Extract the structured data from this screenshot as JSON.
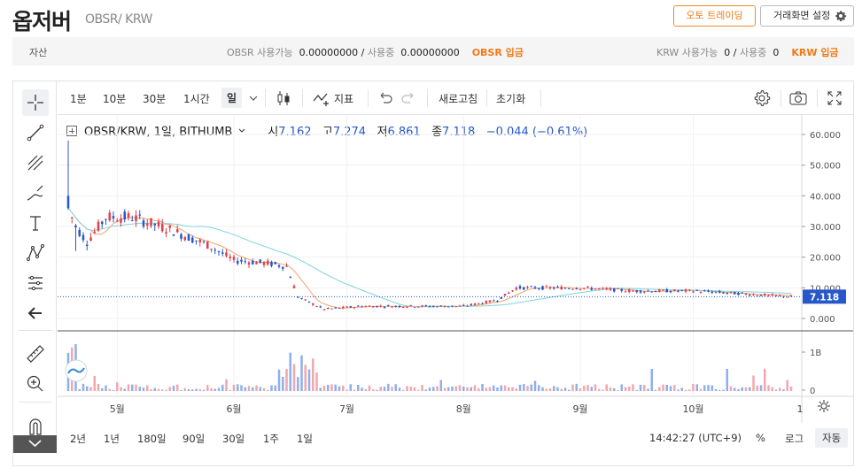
{
  "header": {
    "coin_name": "옵저버",
    "pair": "OBSR/ KRW",
    "auto_trading_label": "오토 트레이딩",
    "settings_label": "거래화면 설정"
  },
  "asset_bar": {
    "label": "자산",
    "obsr": {
      "available_label": "OBSR 사용가능",
      "available_value": "0.00000000",
      "sep": "/",
      "in_use_label": "사용중",
      "in_use_value": "0.00000000",
      "deposit_label": "OBSR 입금"
    },
    "krw": {
      "available_label": "KRW 사용가능",
      "available_value": "0",
      "sep": "/",
      "in_use_label": "사용중",
      "in_use_value": "0",
      "deposit_label": "KRW 입금"
    }
  },
  "toolbar": {
    "intervals": [
      "1분",
      "10분",
      "30분",
      "1시간",
      "일"
    ],
    "selected_interval": "일",
    "indicator_label": "지표",
    "refresh_label": "새로고침",
    "reset_label": "초기화"
  },
  "left_tools": [
    "crosshair-icon",
    "trend-line-icon",
    "fib-icon",
    "brush-icon",
    "text-icon",
    "pattern-icon",
    "measure-icon",
    "back-arrow-icon",
    "ruler-icon",
    "zoom-in-icon",
    "magnet-icon"
  ],
  "legend": {
    "title": "OBSR/KRW, 1일, BITHUMB",
    "open_label": "시",
    "open": "7.162",
    "high_label": "고",
    "high": "7.274",
    "low_label": "저",
    "low": "6.861",
    "close_label": "종",
    "close": "7.118",
    "change": "−0.044 (−0.61%)"
  },
  "price_axis": {
    "ticks": [
      "60.000",
      "50.000",
      "40.000",
      "30.000",
      "20.000",
      "10.000",
      "0.000"
    ],
    "last_price": "7.118"
  },
  "volume_axis": {
    "ticks": [
      "1B",
      "0"
    ]
  },
  "time_axis": {
    "ticks": [
      "5월",
      "6월",
      "7월",
      "8월",
      "9월",
      "10월",
      "1"
    ]
  },
  "bottom_bar": {
    "ranges": [
      "2년",
      "1년",
      "180일",
      "90일",
      "30일",
      "1주",
      "1일"
    ],
    "time": "14:42:27 (UTC+9)",
    "percent_label": "%",
    "log_label": "로그",
    "auto_label": "자동"
  },
  "chart_data": {
    "type": "candlestick",
    "title": "OBSR/KRW, 1일, BITHUMB",
    "x_range": [
      "2021-04-18",
      "2021-10-27"
    ],
    "ylim": [
      -5,
      65
    ],
    "colors": {
      "up": "#e0414d",
      "down": "#2758c9",
      "ma_short": "#f5a26a",
      "ma_long": "#7fd3df",
      "volume_up": "#f2a7ae",
      "volume_down": "#8fb0ea"
    },
    "closes_approx": [
      {
        "date": "2021-04-18",
        "close": 36
      },
      {
        "date": "2021-04-20",
        "close": 30
      },
      {
        "date": "2021-04-23",
        "close": 25
      },
      {
        "date": "2021-04-28",
        "close": 33
      },
      {
        "date": "2021-05-05",
        "close": 33
      },
      {
        "date": "2021-05-15",
        "close": 29
      },
      {
        "date": "2021-05-25",
        "close": 24
      },
      {
        "date": "2021-06-01",
        "close": 19
      },
      {
        "date": "2021-06-10",
        "close": 18
      },
      {
        "date": "2021-06-15",
        "close": 17
      },
      {
        "date": "2021-06-18",
        "close": 7
      },
      {
        "date": "2021-06-25",
        "close": 3
      },
      {
        "date": "2021-07-05",
        "close": 4
      },
      {
        "date": "2021-08-01",
        "close": 4
      },
      {
        "date": "2021-08-10",
        "close": 6
      },
      {
        "date": "2021-08-15",
        "close": 10
      },
      {
        "date": "2021-09-01",
        "close": 10
      },
      {
        "date": "2021-09-15",
        "close": 9
      },
      {
        "date": "2021-10-01",
        "close": 9
      },
      {
        "date": "2021-10-27",
        "close": 7.118
      }
    ],
    "grid": true
  }
}
